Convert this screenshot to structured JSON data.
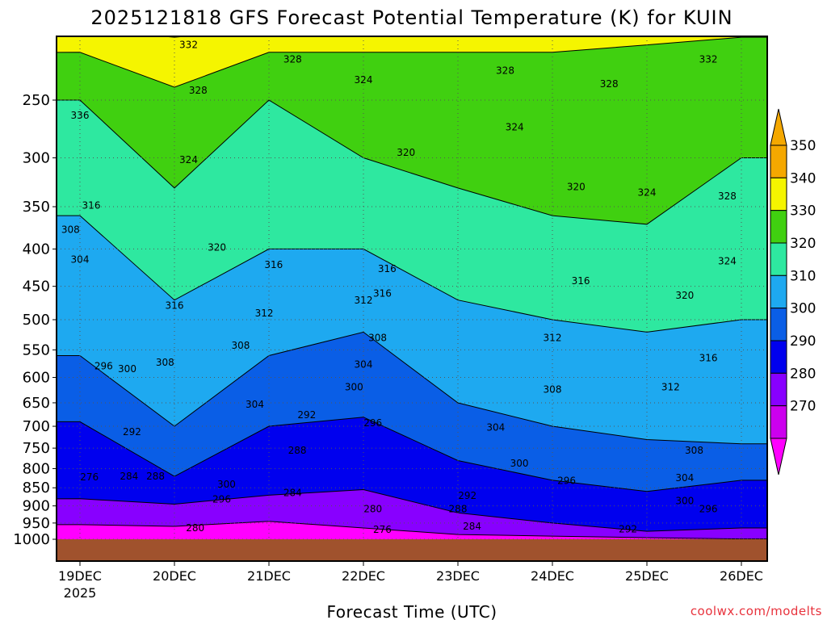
{
  "chart_data": {
    "type": "heatmap",
    "title": "2025121818 GFS Forecast Potential Temperature (K) for KUIN",
    "xlabel": "Forecast Time (UTC)",
    "ylabel": "",
    "credit": "coolwx.com/modelts",
    "y_ticks": [
      250,
      300,
      350,
      400,
      450,
      500,
      550,
      600,
      650,
      700,
      750,
      800,
      850,
      900,
      950,
      1000
    ],
    "y_range": [
      1000,
      200
    ],
    "x_ticks": [
      "19DEC",
      "20DEC",
      "21DEC",
      "22DEC",
      "23DEC",
      "24DEC",
      "25DEC",
      "26DEC"
    ],
    "x_subtitle": "2025",
    "colorbar": {
      "levels": [
        270,
        280,
        290,
        300,
        310,
        320,
        330,
        340,
        350
      ],
      "colors": [
        "#ff00ff",
        "#cc00ee",
        "#8800ff",
        "#0000ee",
        "#0a5ee6",
        "#1ea9f0",
        "#2ee8a0",
        "#40d010",
        "#f5f500",
        "#f5a800"
      ]
    },
    "x_days": [
      0,
      1,
      2,
      3,
      4,
      5,
      6,
      7
    ],
    "isentrope_levels_hpa": {
      "280": [
        955,
        960,
        945,
        965,
        985,
        990,
        995,
        999
      ],
      "290": [
        880,
        895,
        870,
        855,
        920,
        950,
        975,
        965
      ],
      "300": [
        690,
        820,
        700,
        680,
        780,
        830,
        860,
        830
      ],
      "310": [
        560,
        700,
        560,
        520,
        650,
        700,
        730,
        740
      ],
      "320": [
        360,
        470,
        400,
        400,
        470,
        500,
        520,
        500
      ],
      "330": [
        250,
        330,
        250,
        300,
        330,
        360,
        370,
        300
      ],
      "340": [
        215,
        240,
        215,
        215,
        215,
        215,
        210,
        205
      ],
      "350": [
        200,
        205,
        200,
        200,
        200,
        200,
        200,
        200
      ]
    },
    "contour_labels": [
      {
        "text": "332",
        "day": 1.15,
        "p": 212
      },
      {
        "text": "328",
        "day": 2.25,
        "p": 222
      },
      {
        "text": "324",
        "day": 3.0,
        "p": 237
      },
      {
        "text": "328",
        "day": 4.5,
        "p": 230
      },
      {
        "text": "328",
        "day": 5.6,
        "p": 240
      },
      {
        "text": "332",
        "day": 6.65,
        "p": 222
      },
      {
        "text": "336",
        "day": 0.0,
        "p": 265
      },
      {
        "text": "328",
        "day": 1.25,
        "p": 245
      },
      {
        "text": "324",
        "day": 4.6,
        "p": 275
      },
      {
        "text": "324",
        "day": 1.15,
        "p": 305
      },
      {
        "text": "320",
        "day": 3.45,
        "p": 298
      },
      {
        "text": "320",
        "day": 5.25,
        "p": 332
      },
      {
        "text": "324",
        "day": 6.0,
        "p": 338
      },
      {
        "text": "328",
        "day": 6.85,
        "p": 342
      },
      {
        "text": "316",
        "day": 0.12,
        "p": 352
      },
      {
        "text": "308",
        "day": -0.1,
        "p": 380
      },
      {
        "text": "320",
        "day": 1.45,
        "p": 402
      },
      {
        "text": "304",
        "day": 0.0,
        "p": 418
      },
      {
        "text": "324",
        "day": 6.85,
        "p": 420
      },
      {
        "text": "316",
        "day": 2.05,
        "p": 425
      },
      {
        "text": "316",
        "day": 3.25,
        "p": 430
      },
      {
        "text": "316",
        "day": 5.3,
        "p": 447
      },
      {
        "text": "316",
        "day": 3.2,
        "p": 465
      },
      {
        "text": "312",
        "day": 3.0,
        "p": 475
      },
      {
        "text": "316",
        "day": 1.0,
        "p": 483
      },
      {
        "text": "320",
        "day": 6.4,
        "p": 468
      },
      {
        "text": "312",
        "day": 1.95,
        "p": 495
      },
      {
        "text": "308",
        "day": 3.15,
        "p": 535
      },
      {
        "text": "312",
        "day": 5.0,
        "p": 535
      },
      {
        "text": "308",
        "day": 1.7,
        "p": 548
      },
      {
        "text": "308",
        "day": 0.9,
        "p": 578
      },
      {
        "text": "304",
        "day": 3.0,
        "p": 582
      },
      {
        "text": "316",
        "day": 6.65,
        "p": 570
      },
      {
        "text": "296",
        "day": 0.25,
        "p": 585
      },
      {
        "text": "300",
        "day": 0.5,
        "p": 590
      },
      {
        "text": "300",
        "day": 2.9,
        "p": 625
      },
      {
        "text": "312",
        "day": 6.25,
        "p": 625
      },
      {
        "text": "308",
        "day": 5.0,
        "p": 630
      },
      {
        "text": "304",
        "day": 1.85,
        "p": 660
      },
      {
        "text": "292",
        "day": 2.4,
        "p": 682
      },
      {
        "text": "296",
        "day": 3.1,
        "p": 700
      },
      {
        "text": "304",
        "day": 4.4,
        "p": 710
      },
      {
        "text": "292",
        "day": 0.55,
        "p": 720
      },
      {
        "text": "288",
        "day": 2.3,
        "p": 763
      },
      {
        "text": "308",
        "day": 6.5,
        "p": 763
      },
      {
        "text": "300",
        "day": 4.65,
        "p": 795
      },
      {
        "text": "276",
        "day": 0.1,
        "p": 830
      },
      {
        "text": "284",
        "day": 0.52,
        "p": 828
      },
      {
        "text": "288",
        "day": 0.8,
        "p": 828
      },
      {
        "text": "304",
        "day": 6.4,
        "p": 832
      },
      {
        "text": "296",
        "day": 5.15,
        "p": 840
      },
      {
        "text": "300",
        "day": 1.55,
        "p": 850
      },
      {
        "text": "284",
        "day": 2.25,
        "p": 872
      },
      {
        "text": "292",
        "day": 4.1,
        "p": 880
      },
      {
        "text": "296",
        "day": 1.5,
        "p": 890
      },
      {
        "text": "300",
        "day": 6.4,
        "p": 895
      },
      {
        "text": "288",
        "day": 4.0,
        "p": 918
      },
      {
        "text": "280",
        "day": 3.1,
        "p": 918
      },
      {
        "text": "296",
        "day": 6.65,
        "p": 918
      },
      {
        "text": "280",
        "day": 1.22,
        "p": 975
      },
      {
        "text": "276",
        "day": 3.2,
        "p": 980
      },
      {
        "text": "284",
        "day": 4.15,
        "p": 970
      },
      {
        "text": "292",
        "day": 5.8,
        "p": 978
      }
    ]
  }
}
